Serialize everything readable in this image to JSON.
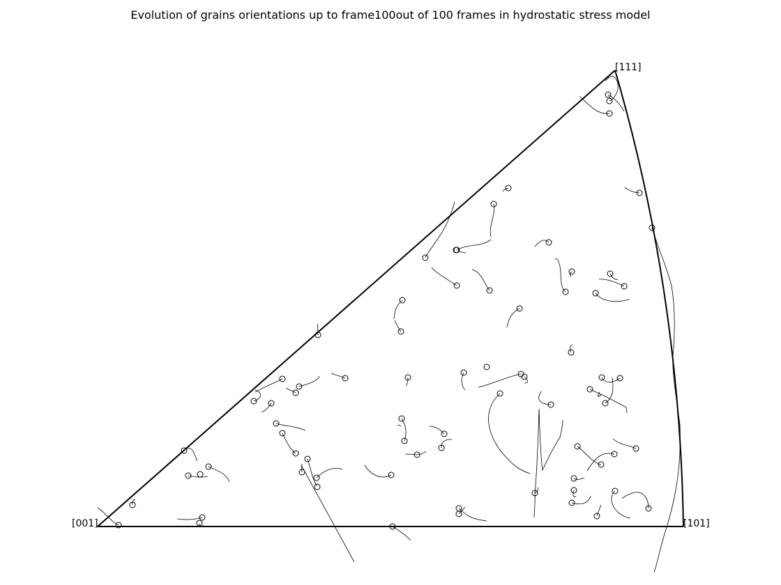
{
  "title": "Evolution of grains orientations up to frame100out of 100 frames in hydrostatic stress model",
  "corners": {
    "c001": "[001]",
    "c111": "[111]",
    "c101": "[101]"
  },
  "triangle": {
    "stroke": "#000000"
  }
}
